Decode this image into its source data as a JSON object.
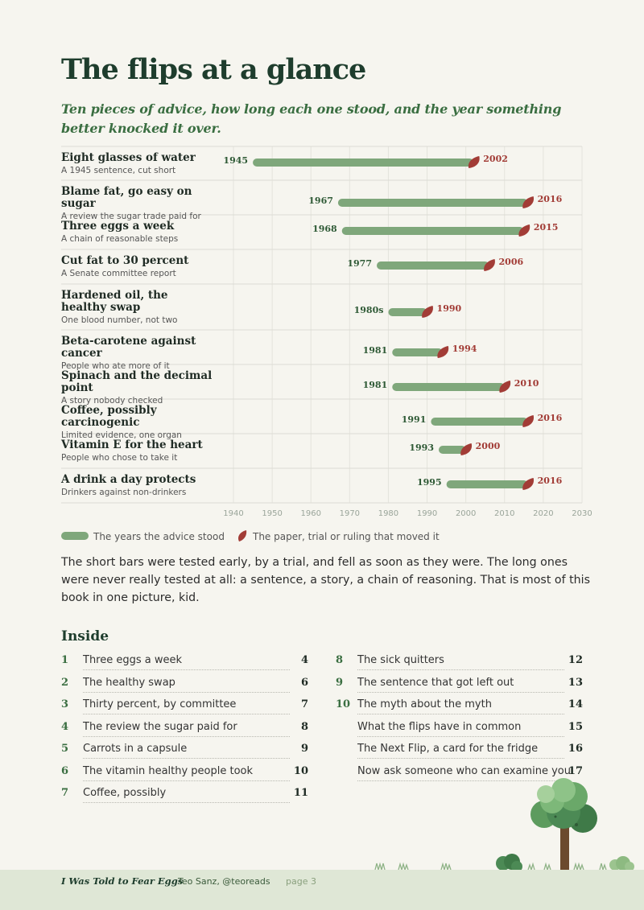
{
  "title": "The flips at a glance",
  "subtitle": "Ten pieces of advice, how long each one stood, and the year something better knocked it over.",
  "colors": {
    "bar": "#7fa77b",
    "leaf": "#a23c36",
    "heading": "#1e3d2d",
    "accent": "#3a6e41"
  },
  "chart_data": {
    "type": "bar",
    "orientation": "horizontal-range",
    "xlim": [
      1940,
      2030
    ],
    "ticks": [
      "1940",
      "1950",
      "1960",
      "1970",
      "1980",
      "1990",
      "2000",
      "2010",
      "2020",
      "2030"
    ],
    "grid": true,
    "rows": [
      {
        "title": "Eight glasses of water",
        "subtitle": "A 1945 sentence, cut short",
        "start": 1945,
        "end": 2002,
        "start_label": "1945",
        "end_label": "2002"
      },
      {
        "title": "Blame fat, go easy on sugar",
        "subtitle": "A review the sugar trade paid for",
        "start": 1967,
        "end": 2016,
        "start_label": "1967",
        "end_label": "2016"
      },
      {
        "title": "Three eggs a week",
        "subtitle": "A chain of reasonable steps",
        "start": 1968,
        "end": 2015,
        "start_label": "1968",
        "end_label": "2015"
      },
      {
        "title": "Cut fat to 30 percent",
        "subtitle": "A Senate committee report",
        "start": 1977,
        "end": 2006,
        "start_label": "1977",
        "end_label": "2006"
      },
      {
        "title": "Hardened oil, the healthy swap",
        "subtitle": "One blood number, not two",
        "start": 1980,
        "end": 1990,
        "start_label": "1980s",
        "end_label": "1990"
      },
      {
        "title": "Beta-carotene against cancer",
        "subtitle": "People who ate more of it",
        "start": 1981,
        "end": 1994,
        "start_label": "1981",
        "end_label": "1994"
      },
      {
        "title": "Spinach and the decimal point",
        "subtitle": "A story nobody checked",
        "start": 1981,
        "end": 2010,
        "start_label": "1981",
        "end_label": "2010"
      },
      {
        "title": "Coffee, possibly carcinogenic",
        "subtitle": "Limited evidence, one organ",
        "start": 1991,
        "end": 2016,
        "start_label": "1991",
        "end_label": "2016"
      },
      {
        "title": "Vitamin E for the heart",
        "subtitle": "People who chose to take it",
        "start": 1993,
        "end": 2000,
        "start_label": "1993",
        "end_label": "2000"
      },
      {
        "title": "A drink a day protects",
        "subtitle": "Drinkers against non-drinkers",
        "start": 1995,
        "end": 2016,
        "start_label": "1995",
        "end_label": "2016"
      }
    ]
  },
  "legend": {
    "bar_label": "The years the advice stood",
    "leaf_label": "The paper, trial or ruling that moved it"
  },
  "paragraph": "The short bars were tested early, by a trial, and fell as soon as they were. The long ones were never really tested at all: a sentence, a story, a chain of reasoning. That is most of this book in one picture, kid.",
  "inside": {
    "heading": "Inside",
    "left": [
      {
        "num": "1",
        "title": "Three eggs a week",
        "page": "4"
      },
      {
        "num": "2",
        "title": "The healthy swap",
        "page": "6"
      },
      {
        "num": "3",
        "title": "Thirty percent, by committee",
        "page": "7"
      },
      {
        "num": "4",
        "title": "The review the sugar paid for",
        "page": "8"
      },
      {
        "num": "5",
        "title": "Carrots in a capsule",
        "page": "9"
      },
      {
        "num": "6",
        "title": "The vitamin healthy people took",
        "page": "10"
      },
      {
        "num": "7",
        "title": "Coffee, possibly",
        "page": "11"
      }
    ],
    "right": [
      {
        "num": "8",
        "title": "The sick quitters",
        "page": "12"
      },
      {
        "num": "9",
        "title": "The sentence that got left out",
        "page": "13"
      },
      {
        "num": "10",
        "title": "The myth about the myth",
        "page": "14"
      },
      {
        "num": "",
        "title": "What the flips have in common",
        "page": "15"
      },
      {
        "num": "",
        "title": "The Next Flip, a card for the fridge",
        "page": "16"
      },
      {
        "num": "",
        "title": "Now ask someone who can examine you",
        "page": "17"
      }
    ]
  },
  "footer": {
    "book": "I Was Told to Fear Eggs",
    "author": "Teo Sanz, @teoreads",
    "page": "page 3"
  }
}
